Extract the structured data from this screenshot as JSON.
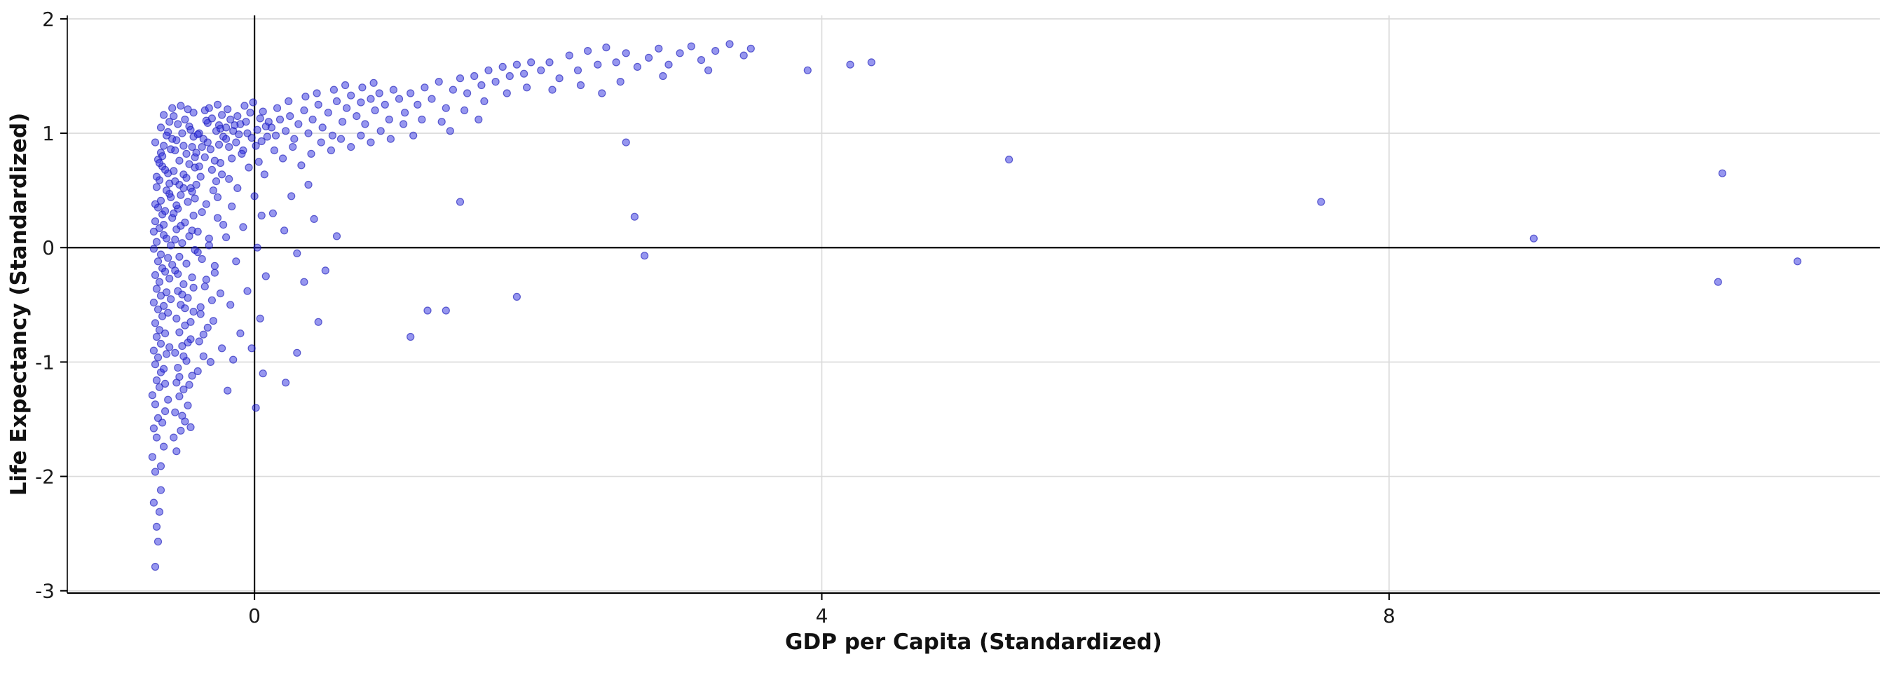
{
  "chart_data": {
    "type": "scatter",
    "title": "",
    "xlabel": "GDP per Capita (Standardized)",
    "ylabel": "Life Expectancy (Standardized)",
    "xlim": [
      -1.32,
      11.46
    ],
    "ylim": [
      -3.02,
      2.03
    ],
    "x_ticks": [
      0,
      4,
      8
    ],
    "y_ticks": [
      -3,
      -2,
      -1,
      0,
      1,
      2
    ],
    "grid": true,
    "legend": "none",
    "reference_lines": {
      "x": 0,
      "y": 0
    },
    "style": {
      "background": "#ffffff",
      "grid_color": "#dadada",
      "axis_color": "#000000",
      "zero_line_color": "#000000",
      "text_color": "#1a1a1a",
      "point_color": "#2d2de0",
      "point_stroke": "#1a1ab8",
      "point_opacity": 0.5,
      "point_radius": 5
    },
    "points": [
      [
        -0.7,
        -2.79
      ],
      [
        -0.69,
        -2.44
      ],
      [
        -0.71,
        -2.23
      ],
      [
        -0.68,
        -2.57
      ],
      [
        -0.66,
        -2.12
      ],
      [
        -0.7,
        -1.96
      ],
      [
        -0.72,
        -1.83
      ],
      [
        -0.67,
        -2.31
      ],
      [
        -0.64,
        -1.74
      ],
      [
        -0.69,
        -1.66
      ],
      [
        -0.71,
        -1.58
      ],
      [
        -0.66,
        -1.91
      ],
      [
        -0.68,
        -1.49
      ],
      [
        -0.63,
        -1.43
      ],
      [
        -0.7,
        -1.37
      ],
      [
        -0.72,
        -1.29
      ],
      [
        -0.65,
        -1.53
      ],
      [
        -0.67,
        -1.22
      ],
      [
        -0.69,
        -1.16
      ],
      [
        -0.61,
        -1.33
      ],
      [
        -0.66,
        -1.09
      ],
      [
        -0.7,
        -1.02
      ],
      [
        -0.63,
        -1.19
      ],
      [
        -0.68,
        -0.96
      ],
      [
        -0.71,
        -0.9
      ],
      [
        -0.64,
        -1.06
      ],
      [
        -0.66,
        -0.84
      ],
      [
        -0.69,
        -0.78
      ],
      [
        -0.62,
        -0.93
      ],
      [
        -0.67,
        -0.72
      ],
      [
        -0.7,
        -0.66
      ],
      [
        -0.6,
        -0.87
      ],
      [
        -0.65,
        -0.6
      ],
      [
        -0.68,
        -0.54
      ],
      [
        -0.63,
        -0.75
      ],
      [
        -0.71,
        -0.48
      ],
      [
        -0.66,
        -0.42
      ],
      [
        -0.61,
        -0.57
      ],
      [
        -0.69,
        -0.36
      ],
      [
        -0.64,
        -0.51
      ],
      [
        -0.67,
        -0.3
      ],
      [
        -0.59,
        -0.45
      ],
      [
        -0.7,
        -0.24
      ],
      [
        -0.62,
        -0.39
      ],
      [
        -0.65,
        -0.18
      ],
      [
        -0.68,
        -0.12
      ],
      [
        -0.6,
        -0.27
      ],
      [
        -0.66,
        -0.06
      ],
      [
        -0.71,
        -0.01
      ],
      [
        -0.63,
        -0.21
      ],
      [
        -0.69,
        0.05
      ],
      [
        -0.58,
        -0.15
      ],
      [
        -0.64,
        0.11
      ],
      [
        -0.67,
        0.17
      ],
      [
        -0.61,
        -0.09
      ],
      [
        -0.7,
        0.23
      ],
      [
        -0.65,
        0.29
      ],
      [
        -0.59,
        0.02
      ],
      [
        -0.68,
        0.35
      ],
      [
        -0.62,
        0.08
      ],
      [
        -0.66,
        0.41
      ],
      [
        -0.71,
        0.14
      ],
      [
        -0.6,
        0.47
      ],
      [
        -0.64,
        0.2
      ],
      [
        -0.69,
        0.53
      ],
      [
        -0.58,
        0.26
      ],
      [
        -0.67,
        0.59
      ],
      [
        -0.63,
        0.32
      ],
      [
        -0.61,
        0.65
      ],
      [
        -0.7,
        0.38
      ],
      [
        -0.65,
        0.71
      ],
      [
        -0.59,
        0.44
      ],
      [
        -0.68,
        0.77
      ],
      [
        -0.62,
        0.5
      ],
      [
        -0.66,
        0.83
      ],
      [
        -0.6,
        0.56
      ],
      [
        -0.64,
        0.89
      ],
      [
        -0.69,
        0.62
      ],
      [
        -0.58,
        0.95
      ],
      [
        -0.63,
        0.68
      ],
      [
        -0.67,
        0.74
      ],
      [
        -0.61,
        1.01
      ],
      [
        -0.65,
        0.8
      ],
      [
        -0.59,
        0.86
      ],
      [
        -0.7,
        0.92
      ],
      [
        -0.62,
        0.98
      ],
      [
        -0.66,
        1.05
      ],
      [
        -0.6,
        1.1
      ],
      [
        -0.64,
        1.16
      ],
      [
        -0.58,
        1.22
      ],
      [
        -0.55,
        -1.78
      ],
      [
        -0.52,
        -1.6
      ],
      [
        -0.56,
        -1.44
      ],
      [
        -0.49,
        -1.52
      ],
      [
        -0.53,
        -1.3
      ],
      [
        -0.47,
        -1.38
      ],
      [
        -0.55,
        -1.18
      ],
      [
        -0.5,
        -1.24
      ],
      [
        -0.44,
        -1.12
      ],
      [
        -0.54,
        -1.05
      ],
      [
        -0.48,
        -0.99
      ],
      [
        -0.56,
        -0.92
      ],
      [
        -0.51,
        -0.86
      ],
      [
        -0.45,
        -0.8
      ],
      [
        -0.53,
        -0.74
      ],
      [
        -0.49,
        -0.68
      ],
      [
        -0.55,
        -0.62
      ],
      [
        -0.43,
        -0.56
      ],
      [
        -0.52,
        -0.5
      ],
      [
        -0.47,
        -0.44
      ],
      [
        -0.54,
        -0.38
      ],
      [
        -0.5,
        -0.32
      ],
      [
        -0.44,
        -0.26
      ],
      [
        -0.56,
        -0.2
      ],
      [
        -0.48,
        -0.14
      ],
      [
        -0.53,
        -0.08
      ],
      [
        -0.42,
        -0.02
      ],
      [
        -0.51,
        0.04
      ],
      [
        -0.46,
        0.1
      ],
      [
        -0.55,
        0.16
      ],
      [
        -0.49,
        0.22
      ],
      [
        -0.43,
        0.28
      ],
      [
        -0.54,
        0.34
      ],
      [
        -0.47,
        0.4
      ],
      [
        -0.52,
        0.46
      ],
      [
        -0.45,
        0.52
      ],
      [
        -0.56,
        0.58
      ],
      [
        -0.5,
        0.64
      ],
      [
        -0.42,
        0.7
      ],
      [
        -0.53,
        0.76
      ],
      [
        -0.48,
        0.82
      ],
      [
        -0.44,
        0.88
      ],
      [
        -0.55,
        0.94
      ],
      [
        -0.51,
        1.0
      ],
      [
        -0.46,
        1.06
      ],
      [
        -0.49,
        1.12
      ],
      [
        -0.43,
        1.18
      ],
      [
        -0.52,
        1.24
      ],
      [
        -0.57,
        -1.66
      ],
      [
        -0.46,
        -1.2
      ],
      [
        -0.5,
        -0.95
      ],
      [
        -0.57,
        0.3
      ],
      [
        -0.45,
        -0.65
      ],
      [
        -0.51,
        -0.41
      ],
      [
        -0.57,
        0.67
      ],
      [
        -0.44,
        0.15
      ],
      [
        -0.56,
        0.85
      ],
      [
        -0.42,
        0.43
      ],
      [
        -0.54,
        1.08
      ],
      [
        -0.46,
        0.73
      ],
      [
        -0.5,
        0.89
      ],
      [
        -0.57,
        1.15
      ],
      [
        -0.43,
        0.97
      ],
      [
        -0.47,
        1.21
      ],
      [
        -0.53,
        0.55
      ],
      [
        -0.45,
        1.03
      ],
      [
        -0.55,
        0.37
      ],
      [
        -0.48,
        0.61
      ],
      [
        -0.52,
        0.19
      ],
      [
        -0.44,
        0.49
      ],
      [
        -0.56,
        0.07
      ],
      [
        -0.42,
        0.79
      ],
      [
        -0.54,
        -0.23
      ],
      [
        -0.49,
        -0.53
      ],
      [
        -0.47,
        -0.83
      ],
      [
        -0.51,
        -1.47
      ],
      [
        -0.45,
        -1.57
      ],
      [
        -0.53,
        -1.13
      ],
      [
        -0.43,
        -0.35
      ],
      [
        -0.5,
        0.52
      ],
      [
        -0.4,
        -1.08
      ],
      [
        -0.36,
        -0.95
      ],
      [
        -0.39,
        -0.82
      ],
      [
        -0.33,
        -0.7
      ],
      [
        -0.38,
        -0.58
      ],
      [
        -0.3,
        -0.46
      ],
      [
        -0.35,
        -0.34
      ],
      [
        -0.28,
        -0.22
      ],
      [
        -0.37,
        -0.1
      ],
      [
        -0.32,
        0.02
      ],
      [
        -0.4,
        0.14
      ],
      [
        -0.26,
        0.26
      ],
      [
        -0.34,
        0.38
      ],
      [
        -0.29,
        0.5
      ],
      [
        -0.38,
        0.62
      ],
      [
        -0.24,
        0.74
      ],
      [
        -0.31,
        0.86
      ],
      [
        -0.36,
        0.95
      ],
      [
        -0.27,
        1.02
      ],
      [
        -0.33,
        1.09
      ],
      [
        -0.23,
        1.16
      ],
      [
        -0.39,
        1.0
      ],
      [
        -0.25,
        0.9
      ],
      [
        -0.35,
        0.79
      ],
      [
        -0.3,
        0.68
      ],
      [
        -0.41,
        0.55
      ],
      [
        -0.26,
        0.44
      ],
      [
        -0.37,
        0.31
      ],
      [
        -0.22,
        0.2
      ],
      [
        -0.32,
        0.08
      ],
      [
        -0.4,
        -0.04
      ],
      [
        -0.28,
        -0.16
      ],
      [
        -0.34,
        -0.28
      ],
      [
        -0.24,
        -0.4
      ],
      [
        -0.38,
        -0.52
      ],
      [
        -0.29,
        -0.64
      ],
      [
        -0.36,
        -0.76
      ],
      [
        -0.23,
        -0.88
      ],
      [
        -0.31,
        -1.0
      ],
      [
        -0.27,
        0.58
      ],
      [
        -0.41,
        0.83
      ],
      [
        -0.25,
        1.07
      ],
      [
        -0.33,
        0.92
      ],
      [
        -0.22,
        0.97
      ],
      [
        -0.39,
        0.71
      ],
      [
        -0.3,
        1.13
      ],
      [
        -0.35,
        1.2
      ],
      [
        -0.26,
        1.25
      ],
      [
        -0.24,
        1.04
      ],
      [
        -0.37,
        0.88
      ],
      [
        -0.28,
        0.76
      ],
      [
        -0.32,
        1.22
      ],
      [
        -0.23,
        0.64
      ],
      [
        -0.4,
        0.99
      ],
      [
        -0.34,
        1.11
      ],
      [
        -0.2,
        0.95
      ],
      [
        -0.15,
        1.02
      ],
      [
        -0.18,
        0.88
      ],
      [
        -0.1,
        1.08
      ],
      [
        -0.13,
        0.92
      ],
      [
        -0.05,
        1.0
      ],
      [
        -0.17,
        1.12
      ],
      [
        -0.08,
        0.85
      ],
      [
        -0.2,
        1.05
      ],
      [
        -0.02,
        0.96
      ],
      [
        -0.12,
        1.15
      ],
      [
        0.02,
        1.03
      ],
      [
        -0.06,
        1.1
      ],
      [
        -0.16,
        0.78
      ],
      [
        0.05,
        0.93
      ],
      [
        -0.03,
        1.18
      ],
      [
        0.08,
        1.06
      ],
      [
        -0.11,
        0.99
      ],
      [
        0.01,
        0.89
      ],
      [
        -0.19,
        1.21
      ],
      [
        0.04,
        1.13
      ],
      [
        -0.07,
        1.24
      ],
      [
        0.09,
        0.97
      ],
      [
        -0.14,
        1.07
      ],
      [
        0.06,
        1.19
      ],
      [
        -0.01,
        1.27
      ],
      [
        -0.09,
        0.82
      ],
      [
        0.03,
        0.75
      ],
      [
        0.1,
        1.1
      ],
      [
        -0.04,
        0.7
      ],
      [
        -0.18,
        0.6
      ],
      [
        0.07,
        0.64
      ],
      [
        -0.12,
        0.52
      ],
      [
        0.0,
        0.45
      ],
      [
        -0.16,
        0.36
      ],
      [
        0.05,
        0.28
      ],
      [
        -0.08,
        0.18
      ],
      [
        -0.2,
        0.09
      ],
      [
        0.02,
        0.0
      ],
      [
        -0.13,
        -0.12
      ],
      [
        0.08,
        -0.25
      ],
      [
        -0.05,
        -0.38
      ],
      [
        -0.17,
        -0.5
      ],
      [
        0.04,
        -0.62
      ],
      [
        -0.1,
        -0.75
      ],
      [
        -0.02,
        -0.88
      ],
      [
        -0.15,
        -0.98
      ],
      [
        0.06,
        -1.1
      ],
      [
        -0.19,
        -1.25
      ],
      [
        0.01,
        -1.4
      ],
      [
        0.12,
        1.05
      ],
      [
        0.15,
        0.98
      ],
      [
        0.18,
        1.12
      ],
      [
        0.22,
        1.02
      ],
      [
        0.25,
        1.15
      ],
      [
        0.28,
        0.95
      ],
      [
        0.31,
        1.08
      ],
      [
        0.35,
        1.2
      ],
      [
        0.38,
        1.0
      ],
      [
        0.41,
        1.12
      ],
      [
        0.45,
        1.25
      ],
      [
        0.48,
        1.05
      ],
      [
        0.52,
        1.18
      ],
      [
        0.55,
        0.98
      ],
      [
        0.58,
        1.28
      ],
      [
        0.62,
        1.1
      ],
      [
        0.65,
        1.22
      ],
      [
        0.68,
        1.33
      ],
      [
        0.72,
        1.15
      ],
      [
        0.75,
        1.27
      ],
      [
        0.78,
        1.08
      ],
      [
        0.82,
        1.3
      ],
      [
        0.85,
        1.2
      ],
      [
        0.88,
        1.35
      ],
      [
        0.92,
        1.25
      ],
      [
        0.95,
        1.12
      ],
      [
        0.98,
        1.38
      ],
      [
        0.14,
        0.85
      ],
      [
        0.2,
        0.78
      ],
      [
        0.27,
        0.88
      ],
      [
        0.33,
        0.72
      ],
      [
        0.4,
        0.82
      ],
      [
        0.47,
        0.92
      ],
      [
        0.54,
        0.85
      ],
      [
        0.61,
        0.95
      ],
      [
        0.68,
        0.88
      ],
      [
        0.75,
        0.98
      ],
      [
        0.82,
        0.92
      ],
      [
        0.89,
        1.02
      ],
      [
        0.96,
        0.95
      ],
      [
        0.16,
        1.22
      ],
      [
        0.24,
        1.28
      ],
      [
        0.36,
        1.32
      ],
      [
        0.44,
        1.35
      ],
      [
        0.56,
        1.38
      ],
      [
        0.64,
        1.42
      ],
      [
        0.76,
        1.4
      ],
      [
        0.84,
        1.44
      ],
      [
        0.13,
        0.3
      ],
      [
        0.21,
        0.15
      ],
      [
        0.3,
        -0.05
      ],
      [
        0.26,
        0.45
      ],
      [
        0.42,
        0.25
      ],
      [
        0.35,
        -0.3
      ],
      [
        0.5,
        -0.2
      ],
      [
        0.58,
        0.1
      ],
      [
        0.45,
        -0.65
      ],
      [
        0.3,
        -0.92
      ],
      [
        0.22,
        -1.18
      ],
      [
        0.38,
        0.55
      ],
      [
        1.02,
        1.3
      ],
      [
        1.06,
        1.18
      ],
      [
        1.1,
        1.35
      ],
      [
        1.15,
        1.25
      ],
      [
        1.2,
        1.4
      ],
      [
        1.25,
        1.3
      ],
      [
        1.3,
        1.45
      ],
      [
        1.35,
        1.22
      ],
      [
        1.4,
        1.38
      ],
      [
        1.45,
        1.48
      ],
      [
        1.5,
        1.35
      ],
      [
        1.55,
        1.5
      ],
      [
        1.6,
        1.42
      ],
      [
        1.65,
        1.55
      ],
      [
        1.7,
        1.45
      ],
      [
        1.75,
        1.58
      ],
      [
        1.8,
        1.5
      ],
      [
        1.85,
        1.6
      ],
      [
        1.9,
        1.52
      ],
      [
        1.95,
        1.62
      ],
      [
        1.05,
        1.08
      ],
      [
        1.18,
        1.12
      ],
      [
        1.32,
        1.1
      ],
      [
        1.48,
        1.2
      ],
      [
        1.62,
        1.28
      ],
      [
        1.78,
        1.35
      ],
      [
        1.92,
        1.4
      ],
      [
        1.12,
        0.98
      ],
      [
        1.38,
        1.02
      ],
      [
        1.58,
        1.12
      ],
      [
        1.22,
        -0.55
      ],
      [
        1.35,
        -0.55
      ],
      [
        1.1,
        -0.78
      ],
      [
        1.85,
        -0.43
      ],
      [
        1.45,
        0.4
      ],
      [
        2.02,
        1.55
      ],
      [
        2.08,
        1.62
      ],
      [
        2.15,
        1.48
      ],
      [
        2.22,
        1.68
      ],
      [
        2.28,
        1.55
      ],
      [
        2.35,
        1.72
      ],
      [
        2.42,
        1.6
      ],
      [
        2.48,
        1.75
      ],
      [
        2.55,
        1.62
      ],
      [
        2.62,
        1.7
      ],
      [
        2.7,
        1.58
      ],
      [
        2.78,
        1.66
      ],
      [
        2.85,
        1.74
      ],
      [
        2.92,
        1.6
      ],
      [
        3.0,
        1.7
      ],
      [
        3.08,
        1.76
      ],
      [
        3.15,
        1.64
      ],
      [
        3.25,
        1.72
      ],
      [
        3.35,
        1.78
      ],
      [
        3.45,
        1.68
      ],
      [
        2.1,
        1.38
      ],
      [
        2.3,
        1.42
      ],
      [
        2.58,
        1.45
      ],
      [
        2.88,
        1.5
      ],
      [
        3.2,
        1.55
      ],
      [
        2.45,
        1.35
      ],
      [
        3.5,
        1.74
      ],
      [
        2.68,
        0.27
      ],
      [
        2.75,
        -0.07
      ],
      [
        2.62,
        0.92
      ],
      [
        3.9,
        1.55
      ],
      [
        4.2,
        1.6
      ],
      [
        4.35,
        1.62
      ],
      [
        5.32,
        0.77
      ],
      [
        7.52,
        0.4
      ],
      [
        9.02,
        0.08
      ],
      [
        10.35,
        0.65
      ],
      [
        10.32,
        -0.3
      ],
      [
        10.88,
        -0.12
      ]
    ]
  }
}
